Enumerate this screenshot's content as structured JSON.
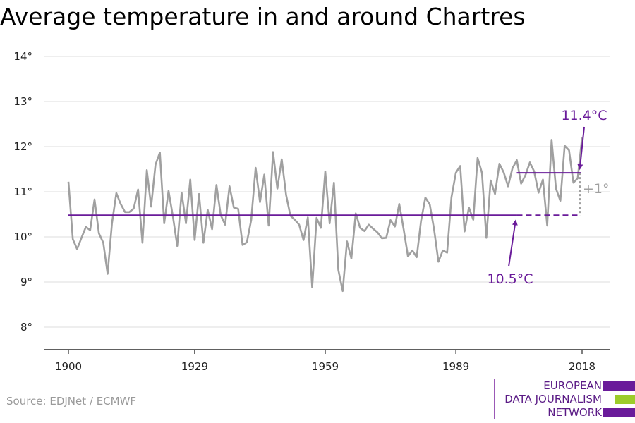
{
  "header": {
    "title": "Average temperature in and around Chartres"
  },
  "footer": {
    "source": "Source: EDJNet / ECMWF",
    "logo_lines": [
      "EUROPEAN",
      "DATA JOURNALISM",
      "NETWORK"
    ],
    "logo_colors": [
      "#6a1b9a",
      "#9ccc2a",
      "#6a1b9a"
    ]
  },
  "chart_data": {
    "type": "line",
    "title": "Average temperature in and around Chartres",
    "xlabel": "",
    "ylabel": "",
    "xlim": [
      1900,
      2018
    ],
    "ylim": [
      8,
      14
    ],
    "x_ticks": [
      1900,
      1929,
      1959,
      1989,
      2018
    ],
    "x_tick_labels": [
      "1900",
      "1929",
      "1959",
      "1989",
      "2018"
    ],
    "y_ticks": [
      8,
      9,
      10,
      11,
      12,
      13,
      14
    ],
    "y_tick_labels": [
      "8°",
      "9°",
      "10°",
      "11°",
      "12°",
      "13°",
      "14°"
    ],
    "grid": true,
    "colors": {
      "series": "#a0a0a0",
      "baseline": "#6a1b9a",
      "annotation": "#6a1b9a",
      "delta": "#a0a0a0"
    },
    "series": [
      {
        "x": [
          1900,
          1901,
          1902,
          1903,
          1904,
          1905,
          1906,
          1907,
          1908,
          1909,
          1910,
          1911,
          1912,
          1913,
          1914,
          1915,
          1916,
          1917,
          1918,
          1919,
          1920,
          1921,
          1922,
          1923,
          1924,
          1925,
          1926,
          1927,
          1928,
          1929,
          1930,
          1931,
          1932,
          1933,
          1934,
          1935,
          1936,
          1937,
          1938,
          1939,
          1940,
          1941,
          1942,
          1943,
          1944,
          1945,
          1946,
          1947,
          1948,
          1949,
          1950,
          1951,
          1952,
          1953,
          1954,
          1955,
          1956,
          1957,
          1958,
          1959,
          1960,
          1961,
          1962,
          1963,
          1964,
          1965,
          1966,
          1967,
          1968,
          1969,
          1970,
          1971,
          1972,
          1973,
          1974,
          1975,
          1976,
          1977,
          1978,
          1979,
          1980,
          1981,
          1982,
          1983,
          1984,
          1985,
          1986,
          1987,
          1988,
          1989,
          1990,
          1991,
          1992,
          1993,
          1994,
          1995,
          1996,
          1997,
          1998,
          1999,
          2000,
          2001,
          2002,
          2003,
          2004,
          2005,
          2006,
          2007,
          2008,
          2009,
          2010,
          2011,
          2012,
          2013,
          2014,
          2015,
          2016,
          2017,
          2018
        ],
        "values": [
          11.22,
          9.95,
          9.73,
          9.98,
          10.22,
          10.15,
          10.83,
          10.08,
          9.87,
          9.18,
          10.3,
          10.97,
          10.73,
          10.55,
          10.55,
          10.63,
          11.05,
          9.87,
          11.48,
          10.67,
          11.6,
          11.87,
          10.3,
          11.02,
          10.45,
          9.8,
          10.98,
          10.3,
          11.27,
          9.93,
          10.95,
          9.87,
          10.6,
          10.17,
          11.15,
          10.48,
          10.27,
          11.12,
          10.65,
          10.62,
          9.82,
          9.88,
          10.38,
          11.53,
          10.77,
          11.38,
          10.25,
          11.88,
          11.07,
          11.72,
          10.93,
          10.47,
          10.38,
          10.27,
          9.93,
          10.43,
          8.88,
          10.42,
          10.2,
          11.45,
          10.3,
          11.2,
          9.27,
          8.8,
          9.9,
          9.52,
          10.52,
          10.2,
          10.13,
          10.27,
          10.18,
          10.1,
          9.97,
          9.98,
          10.37,
          10.23,
          10.73,
          10.17,
          9.57,
          9.7,
          9.55,
          10.35,
          10.87,
          10.72,
          10.17,
          9.45,
          9.7,
          9.65,
          10.88,
          11.42,
          11.57,
          10.12,
          10.65,
          10.38,
          11.75,
          11.42,
          9.98,
          11.25,
          10.95,
          11.62,
          11.43,
          11.12,
          11.52,
          11.7,
          11.18,
          11.37,
          11.65,
          11.45,
          10.98,
          11.27,
          10.25,
          12.15,
          11.07,
          10.8,
          12.02,
          11.92,
          11.2,
          11.3,
          12.2
        ]
      }
    ],
    "reference_lines": [
      {
        "label": "10.5°C",
        "value": 10.48,
        "x_start": 1900,
        "x_end": 2018,
        "dashed_from": 2003
      },
      {
        "label": "11.4°C",
        "value": 11.42,
        "x_start": 2003,
        "x_end": 2018
      }
    ],
    "annotations": {
      "baseline_label": "10.5°C",
      "recent_label": "11.4°C",
      "delta_label": "+1°"
    }
  }
}
